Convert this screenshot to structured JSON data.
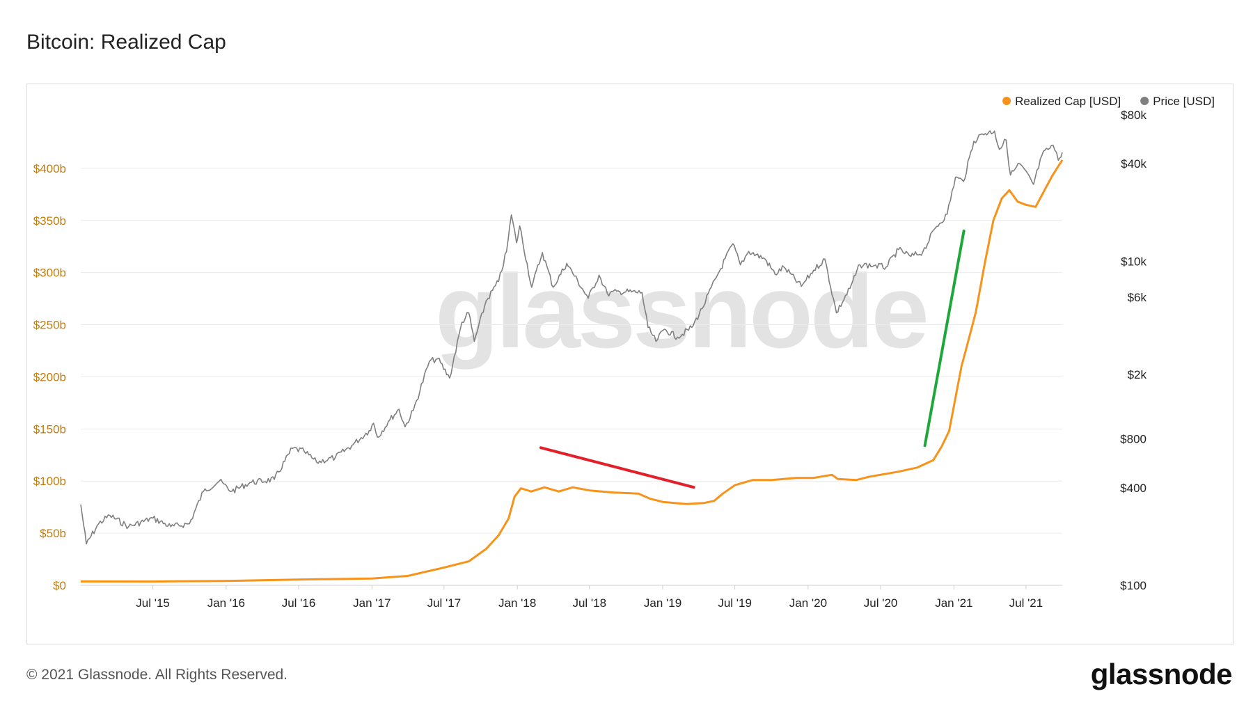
{
  "header": {
    "title": "Bitcoin: Realized Cap"
  },
  "footer": {
    "copyright": "© 2021 Glassnode. All Rights Reserved.",
    "logo_text": "glassnode"
  },
  "watermark": "glassnode",
  "colors": {
    "realized_cap": "#f7931a",
    "price": "#7f7f7f",
    "red_annotation": "#e3202a",
    "green_annotation": "#1fa83a",
    "left_axis_text": "#c27c0e",
    "grid": "#ececec"
  },
  "chart_data": {
    "type": "line",
    "title": "Bitcoin: Realized Cap",
    "legend": {
      "placement": "top-right",
      "items": [
        {
          "label": "Realized Cap [USD]",
          "color": "#f7931a"
        },
        {
          "label": "Price [USD]",
          "color": "#7f7f7f"
        }
      ]
    },
    "x_axis": {
      "range": [
        "2015-01-01",
        "2021-09-30"
      ],
      "ticks": [
        {
          "date": "2015-07-01",
          "label": "Jul '15"
        },
        {
          "date": "2016-01-01",
          "label": "Jan '16"
        },
        {
          "date": "2016-07-01",
          "label": "Jul '16"
        },
        {
          "date": "2017-01-01",
          "label": "Jan '17"
        },
        {
          "date": "2017-07-01",
          "label": "Jul '17"
        },
        {
          "date": "2018-01-01",
          "label": "Jan '18"
        },
        {
          "date": "2018-07-01",
          "label": "Jul '18"
        },
        {
          "date": "2019-01-01",
          "label": "Jan '19"
        },
        {
          "date": "2019-07-01",
          "label": "Jul '19"
        },
        {
          "date": "2020-01-01",
          "label": "Jan '20"
        },
        {
          "date": "2020-07-01",
          "label": "Jul '20"
        },
        {
          "date": "2021-01-01",
          "label": "Jan '21"
        },
        {
          "date": "2021-07-01",
          "label": "Jul '21"
        }
      ]
    },
    "y_left": {
      "scale": "linear",
      "range": [
        0,
        450
      ],
      "unit": "billion USD",
      "ticks": [
        {
          "value": 0,
          "label": "$0"
        },
        {
          "value": 50,
          "label": "$50b"
        },
        {
          "value": 100,
          "label": "$100b"
        },
        {
          "value": 150,
          "label": "$150b"
        },
        {
          "value": 200,
          "label": "$200b"
        },
        {
          "value": 250,
          "label": "$250b"
        },
        {
          "value": 300,
          "label": "$300b"
        },
        {
          "value": 350,
          "label": "$350b"
        },
        {
          "value": 400,
          "label": "$400b"
        }
      ],
      "grid": true
    },
    "y_right": {
      "scale": "log",
      "range": [
        100,
        80000
      ],
      "ticks": [
        {
          "value": 100,
          "label": "$100"
        },
        {
          "value": 400,
          "label": "$400"
        },
        {
          "value": 800,
          "label": "$800"
        },
        {
          "value": 2000,
          "label": "$2k"
        },
        {
          "value": 6000,
          "label": "$6k"
        },
        {
          "value": 10000,
          "label": "$10k"
        },
        {
          "value": 40000,
          "label": "$40k"
        },
        {
          "value": 80000,
          "label": "$80k"
        }
      ]
    },
    "series": [
      {
        "name": "Realized Cap [USD]",
        "axis": "left",
        "color": "#f7931a",
        "points": [
          [
            "2015-01-01",
            3.7
          ],
          [
            "2015-07-01",
            3.6
          ],
          [
            "2016-01-01",
            4.2
          ],
          [
            "2016-07-01",
            5.5
          ],
          [
            "2017-01-01",
            6.5
          ],
          [
            "2017-04-01",
            9
          ],
          [
            "2017-07-01",
            17
          ],
          [
            "2017-09-01",
            23
          ],
          [
            "2017-10-15",
            35
          ],
          [
            "2017-11-15",
            48
          ],
          [
            "2017-12-10",
            64
          ],
          [
            "2017-12-25",
            85
          ],
          [
            "2018-01-10",
            93
          ],
          [
            "2018-02-05",
            90
          ],
          [
            "2018-03-10",
            94
          ],
          [
            "2018-04-15",
            90
          ],
          [
            "2018-05-20",
            94
          ],
          [
            "2018-07-01",
            91
          ],
          [
            "2018-09-01",
            89
          ],
          [
            "2018-11-01",
            88
          ],
          [
            "2018-12-01",
            83
          ],
          [
            "2019-01-01",
            80
          ],
          [
            "2019-03-01",
            78
          ],
          [
            "2019-04-15",
            79
          ],
          [
            "2019-05-10",
            81
          ],
          [
            "2019-06-01",
            88
          ],
          [
            "2019-07-01",
            96
          ],
          [
            "2019-08-15",
            101
          ],
          [
            "2019-10-01",
            101
          ],
          [
            "2019-12-01",
            103
          ],
          [
            "2020-01-15",
            103
          ],
          [
            "2020-03-01",
            106
          ],
          [
            "2020-03-15",
            102
          ],
          [
            "2020-05-01",
            101
          ],
          [
            "2020-06-01",
            104
          ],
          [
            "2020-08-15",
            109
          ],
          [
            "2020-10-01",
            113
          ],
          [
            "2020-11-10",
            120
          ],
          [
            "2020-12-01",
            133
          ],
          [
            "2020-12-20",
            148
          ],
          [
            "2021-01-05",
            180
          ],
          [
            "2021-01-20",
            210
          ],
          [
            "2021-02-10",
            240
          ],
          [
            "2021-02-25",
            262
          ],
          [
            "2021-03-20",
            310
          ],
          [
            "2021-04-10",
            350
          ],
          [
            "2021-05-01",
            371
          ],
          [
            "2021-05-20",
            379
          ],
          [
            "2021-06-10",
            368
          ],
          [
            "2021-07-01",
            365
          ],
          [
            "2021-07-25",
            363
          ],
          [
            "2021-08-15",
            378
          ],
          [
            "2021-09-05",
            393
          ],
          [
            "2021-09-30",
            408
          ]
        ]
      },
      {
        "name": "Price [USD]",
        "axis": "right",
        "color": "#7f7f7f",
        "points": [
          [
            "2015-01-01",
            315
          ],
          [
            "2015-01-15",
            180
          ],
          [
            "2015-02-15",
            240
          ],
          [
            "2015-03-15",
            270
          ],
          [
            "2015-05-01",
            230
          ],
          [
            "2015-07-01",
            260
          ],
          [
            "2015-08-15",
            230
          ],
          [
            "2015-10-01",
            240
          ],
          [
            "2015-11-05",
            380
          ],
          [
            "2015-12-15",
            440
          ],
          [
            "2016-01-15",
            380
          ],
          [
            "2016-03-01",
            430
          ],
          [
            "2016-05-01",
            450
          ],
          [
            "2016-06-15",
            700
          ],
          [
            "2016-07-15",
            670
          ],
          [
            "2016-08-15",
            575
          ],
          [
            "2016-10-01",
            615
          ],
          [
            "2016-11-15",
            740
          ],
          [
            "2016-12-25",
            900
          ],
          [
            "2017-01-05",
            1000
          ],
          [
            "2017-01-15",
            820
          ],
          [
            "2017-02-15",
            1050
          ],
          [
            "2017-03-10",
            1220
          ],
          [
            "2017-03-25",
            950
          ],
          [
            "2017-04-15",
            1200
          ],
          [
            "2017-05-25",
            2400
          ],
          [
            "2017-06-15",
            2500
          ],
          [
            "2017-07-15",
            1900
          ],
          [
            "2017-08-15",
            4200
          ],
          [
            "2017-09-01",
            4800
          ],
          [
            "2017-09-15",
            3200
          ],
          [
            "2017-10-15",
            5700
          ],
          [
            "2017-11-15",
            7500
          ],
          [
            "2017-12-05",
            11500
          ],
          [
            "2017-12-17",
            19300
          ],
          [
            "2017-12-30",
            13000
          ],
          [
            "2018-01-07",
            16500
          ],
          [
            "2018-02-06",
            6900
          ],
          [
            "2018-03-05",
            11300
          ],
          [
            "2018-04-01",
            6900
          ],
          [
            "2018-05-05",
            9700
          ],
          [
            "2018-06-28",
            5900
          ],
          [
            "2018-07-25",
            8200
          ],
          [
            "2018-08-15",
            6300
          ],
          [
            "2018-09-15",
            6500
          ],
          [
            "2018-11-10",
            6400
          ],
          [
            "2018-11-25",
            3900
          ],
          [
            "2018-12-15",
            3200
          ],
          [
            "2019-01-05",
            3800
          ],
          [
            "2019-02-07",
            3400
          ],
          [
            "2019-03-15",
            3900
          ],
          [
            "2019-04-10",
            5100
          ],
          [
            "2019-05-15",
            7900
          ],
          [
            "2019-06-26",
            12800
          ],
          [
            "2019-07-15",
            9500
          ],
          [
            "2019-08-05",
            11500
          ],
          [
            "2019-09-15",
            10300
          ],
          [
            "2019-10-10",
            8300
          ],
          [
            "2019-11-01",
            9200
          ],
          [
            "2019-12-15",
            7000
          ],
          [
            "2020-01-15",
            8800
          ],
          [
            "2020-02-12",
            10300
          ],
          [
            "2020-03-12",
            4800
          ],
          [
            "2020-04-15",
            6800
          ],
          [
            "2020-05-10",
            9500
          ],
          [
            "2020-06-15",
            9400
          ],
          [
            "2020-07-15",
            9200
          ],
          [
            "2020-08-15",
            11800
          ],
          [
            "2020-09-15",
            10700
          ],
          [
            "2020-10-15",
            11400
          ],
          [
            "2020-11-15",
            16000
          ],
          [
            "2020-12-15",
            19500
          ],
          [
            "2021-01-05",
            33000
          ],
          [
            "2021-01-25",
            31000
          ],
          [
            "2021-02-20",
            55000
          ],
          [
            "2021-03-13",
            61000
          ],
          [
            "2021-04-13",
            63500
          ],
          [
            "2021-04-25",
            49000
          ],
          [
            "2021-05-12",
            56000
          ],
          [
            "2021-05-23",
            34000
          ],
          [
            "2021-06-15",
            40000
          ],
          [
            "2021-07-20",
            29800
          ],
          [
            "2021-08-10",
            45000
          ],
          [
            "2021-08-25",
            49000
          ],
          [
            "2021-09-07",
            52000
          ],
          [
            "2021-09-20",
            42000
          ],
          [
            "2021-09-30",
            47000
          ]
        ]
      }
    ],
    "annotations": [
      {
        "type": "line",
        "color": "#e3202a",
        "from": [
          "2018-03-01",
          132
        ],
        "to": [
          "2019-03-20",
          94
        ]
      },
      {
        "type": "line",
        "color": "#1fa83a",
        "from": [
          "2020-10-20",
          134
        ],
        "to": [
          "2021-01-26",
          340
        ]
      }
    ]
  }
}
